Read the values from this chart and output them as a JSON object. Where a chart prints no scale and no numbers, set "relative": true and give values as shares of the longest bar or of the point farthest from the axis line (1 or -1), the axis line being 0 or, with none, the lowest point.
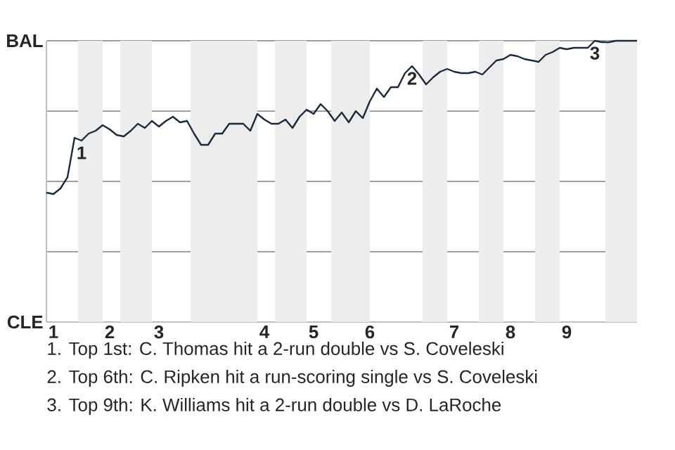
{
  "chart_data": {
    "type": "line",
    "relative": true,
    "categories": [
      null,
      "1",
      null,
      null,
      null,
      null,
      null,
      null,
      null,
      "2",
      null,
      null,
      null,
      null,
      null,
      null,
      "3",
      null,
      null,
      null,
      null,
      null,
      null,
      null,
      null,
      null,
      null,
      null,
      null,
      null,
      null,
      "4",
      null,
      null,
      null,
      null,
      null,
      null,
      "5",
      null,
      null,
      null,
      null,
      null,
      null,
      null,
      "6",
      null,
      null,
      null,
      null,
      null,
      null,
      null,
      null,
      null,
      null,
      null,
      "7",
      null,
      null,
      null,
      null,
      null,
      null,
      null,
      "8",
      null,
      null,
      null,
      null,
      null,
      null,
      null,
      "9",
      null,
      null,
      null,
      null,
      null,
      null,
      null,
      null,
      null,
      null
    ],
    "series": [
      {
        "color": "#1c2a3e",
        "values": [
          0.46,
          0.455,
          0.475,
          0.515,
          0.655,
          0.645,
          0.67,
          0.68,
          0.7,
          0.685,
          0.665,
          0.66,
          0.68,
          0.705,
          0.69,
          0.715,
          0.695,
          0.715,
          0.73,
          0.71,
          0.715,
          0.67,
          0.63,
          0.63,
          0.67,
          0.67,
          0.705,
          0.705,
          0.705,
          0.68,
          0.74,
          0.72,
          0.705,
          0.705,
          0.72,
          0.69,
          0.73,
          0.755,
          0.74,
          0.775,
          0.75,
          0.715,
          0.745,
          0.71,
          0.75,
          0.725,
          0.785,
          0.83,
          0.8,
          0.835,
          0.835,
          0.885,
          0.91,
          0.88,
          0.845,
          0.87,
          0.89,
          0.9,
          0.89,
          0.885,
          0.885,
          0.89,
          0.88,
          0.905,
          0.93,
          0.935,
          0.95,
          0.945,
          0.935,
          0.93,
          0.925,
          0.95,
          0.96,
          0.975,
          0.97,
          0.975,
          0.975,
          0.975,
          1.0,
          0.995,
          0.995,
          1.0,
          1.0,
          1.0,
          1.0
        ]
      }
    ],
    "grid": "y",
    "annotations": [
      "BAL",
      "CLE",
      {
        "text": "1",
        "y": 0.645
      },
      {
        "text": "2",
        "y": 0.91
      },
      {
        "text": "3",
        "y": 1.0
      },
      "1. Top 1st: C. Thomas hit a 2-run double vs S. Coveleski",
      "2. Top 6th: C. Ripken hit a run-scoring single vs S. Coveleski",
      "3. Top 9th: K. Williams hit a 2-run double vs D. LaRoche"
    ]
  }
}
